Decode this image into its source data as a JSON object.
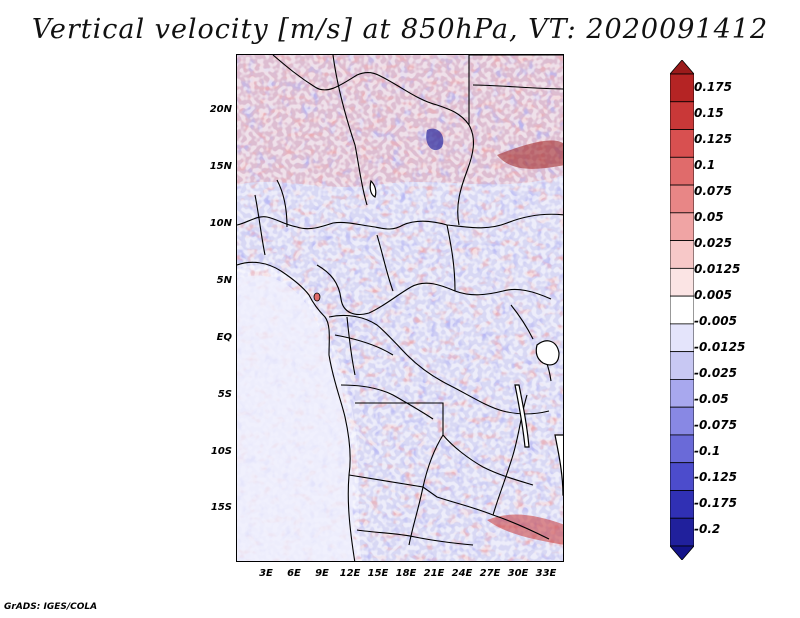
{
  "title": "Vertical velocity [m/s] at 850hPa, VT: 2020091412",
  "footer": "GrADS: IGES/COLA",
  "map": {
    "lat_labels": [
      "20N",
      "15N",
      "10N",
      "5N",
      "EQ",
      "5S",
      "10S",
      "15S"
    ],
    "lon_labels": [
      "3E",
      "6E",
      "9E",
      "12E",
      "15E",
      "18E",
      "21E",
      "24E",
      "27E",
      "30E",
      "33E"
    ]
  },
  "colorbar": {
    "labels": [
      "0.175",
      "0.15",
      "0.125",
      "0.1",
      "0.075",
      "0.05",
      "0.025",
      "0.0125",
      "0.005",
      "-0.005",
      "-0.0125",
      "-0.025",
      "-0.05",
      "-0.075",
      "-0.1",
      "-0.125",
      "-0.175",
      "-0.2"
    ],
    "colors": [
      "#9b1b1b",
      "#b52424",
      "#c93838",
      "#d85050",
      "#e06b6b",
      "#e88686",
      "#f0a4a4",
      "#f7c8c8",
      "#fbe4e4",
      "#ffffff",
      "#e4e4fb",
      "#c8c8f3",
      "#a8a8ee",
      "#8888e4",
      "#6a6ad8",
      "#4c4ccc",
      "#3030b4",
      "#20209c",
      "#14148a"
    ]
  }
}
